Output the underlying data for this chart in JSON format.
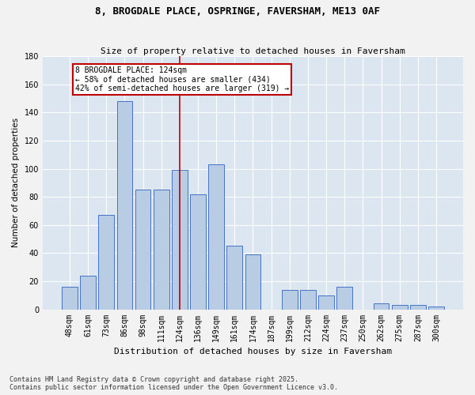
{
  "title": "8, BROGDALE PLACE, OSPRINGE, FAVERSHAM, ME13 0AF",
  "subtitle": "Size of property relative to detached houses in Faversham",
  "xlabel": "Distribution of detached houses by size in Faversham",
  "ylabel": "Number of detached properties",
  "categories": [
    "48sqm",
    "61sqm",
    "73sqm",
    "86sqm",
    "98sqm",
    "111sqm",
    "124sqm",
    "136sqm",
    "149sqm",
    "161sqm",
    "174sqm",
    "187sqm",
    "199sqm",
    "212sqm",
    "224sqm",
    "237sqm",
    "250sqm",
    "262sqm",
    "275sqm",
    "287sqm",
    "300sqm"
  ],
  "values": [
    16,
    24,
    67,
    148,
    85,
    85,
    99,
    82,
    103,
    45,
    39,
    0,
    14,
    14,
    10,
    16,
    0,
    4,
    3,
    3,
    2
  ],
  "bar_color": "#b8cce4",
  "bar_edge_color": "#4472c4",
  "plot_bg_color": "#dce6f1",
  "fig_bg_color": "#f2f2f2",
  "grid_color": "#ffffff",
  "vline_color": "#c00000",
  "vline_x_index": 6,
  "annotation_text": "8 BROGDALE PLACE: 124sqm\n← 58% of detached houses are smaller (434)\n42% of semi-detached houses are larger (319) →",
  "annotation_box_edge_color": "#c00000",
  "footer": "Contains HM Land Registry data © Crown copyright and database right 2025.\nContains public sector information licensed under the Open Government Licence v3.0.",
  "ylim": [
    0,
    180
  ],
  "yticks": [
    0,
    20,
    40,
    60,
    80,
    100,
    120,
    140,
    160,
    180
  ],
  "title_fontsize": 9,
  "subtitle_fontsize": 8,
  "xlabel_fontsize": 8,
  "ylabel_fontsize": 7.5,
  "tick_fontsize": 7,
  "annotation_fontsize": 7,
  "footer_fontsize": 6
}
